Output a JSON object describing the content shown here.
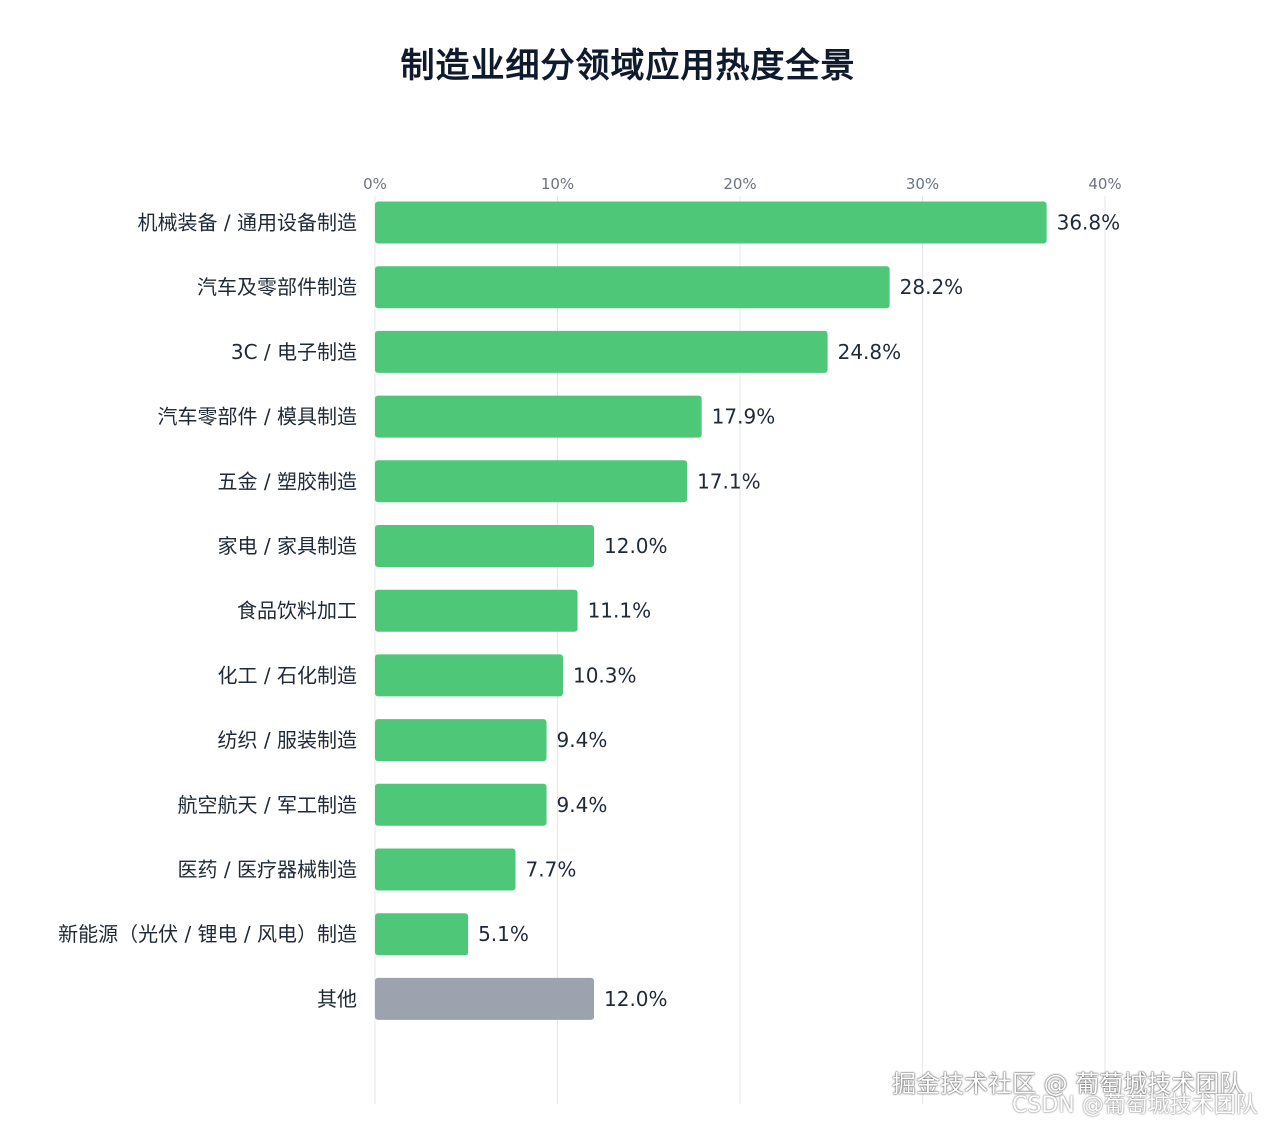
{
  "chart_data": {
    "type": "bar",
    "orientation": "horizontal",
    "title": "制造业细分领域应用热度全景",
    "x_ticks": [
      "0%",
      "10%",
      "20%",
      "30%",
      "40%"
    ],
    "xlim": [
      0,
      40
    ],
    "grid": true,
    "categories": [
      "机械装备 / 通用设备制造",
      "汽车及零部件制造",
      "3C / 电子制造",
      "汽车零部件 / 模具制造",
      "五金 / 塑胶制造",
      "家电 / 家具制造",
      "食品饮料加工",
      "化工 / 石化制造",
      "纺织 / 服装制造",
      "航空航天 / 军工制造",
      "医药 / 医疗器械制造",
      "新能源（光伏 / 锂电 / 风电）制造",
      "其他"
    ],
    "values": [
      36.8,
      28.2,
      24.8,
      17.9,
      17.1,
      12.0,
      11.1,
      10.3,
      9.4,
      9.4,
      7.7,
      5.1,
      12.0
    ],
    "value_labels": [
      "36.8%",
      "28.2%",
      "24.8%",
      "17.9%",
      "17.1%",
      "12.0%",
      "11.1%",
      "10.3%",
      "9.4%",
      "9.4%",
      "7.7%",
      "5.1%",
      "12.0%"
    ],
    "colors": {
      "bar": "#4ec878",
      "other_bar": "#9ca3af",
      "grid": "#e5e7eb",
      "title": "#0f1b2d"
    }
  },
  "watermark": {
    "line1": "掘金技术社区 @ 葡萄城技术团队",
    "line2": "CSDN @葡萄城技术团队"
  }
}
